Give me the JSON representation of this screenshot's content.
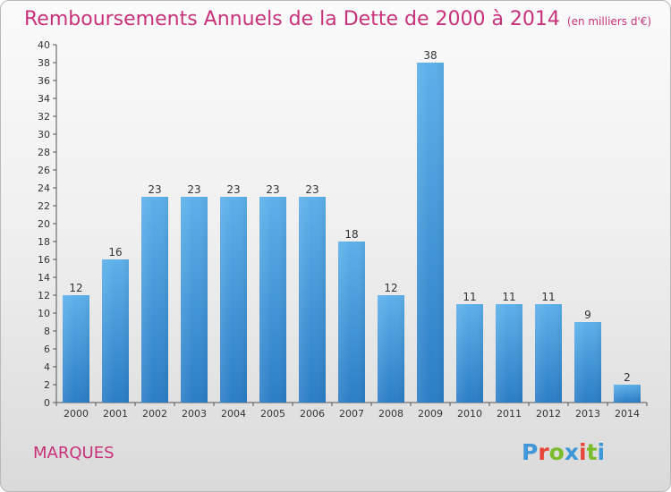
{
  "header": {
    "title": "Remboursements Annuels de la Dette de 2000 à 2014",
    "subtitle": "(en milliers d'€)"
  },
  "footer": {
    "city": "MARQUES",
    "logo_text": "Proxiti"
  },
  "colors": {
    "title": "#c8327a",
    "bar_top": "#5db0ea",
    "bar_bottom": "#2a7dc5",
    "logo_letters": [
      "#3d97d8",
      "#e8463b",
      "#7bbc2d"
    ]
  },
  "chart_data": {
    "type": "bar",
    "title": "Remboursements Annuels de la Dette de 2000 à 2014",
    "subtitle": "(en milliers d'€)",
    "xlabel": "",
    "ylabel": "",
    "categories": [
      "2000",
      "2001",
      "2002",
      "2003",
      "2004",
      "2005",
      "2006",
      "2007",
      "2008",
      "2009",
      "2010",
      "2011",
      "2012",
      "2013",
      "2014"
    ],
    "values": [
      12,
      16,
      23,
      23,
      23,
      23,
      23,
      18,
      12,
      38,
      11,
      11,
      11,
      9,
      2
    ],
    "ylim": [
      0,
      40
    ],
    "yticks": [
      0,
      2,
      4,
      6,
      8,
      10,
      12,
      14,
      16,
      18,
      20,
      22,
      24,
      26,
      28,
      30,
      32,
      34,
      36,
      38,
      40
    ],
    "grid": false,
    "data_labels": true
  }
}
